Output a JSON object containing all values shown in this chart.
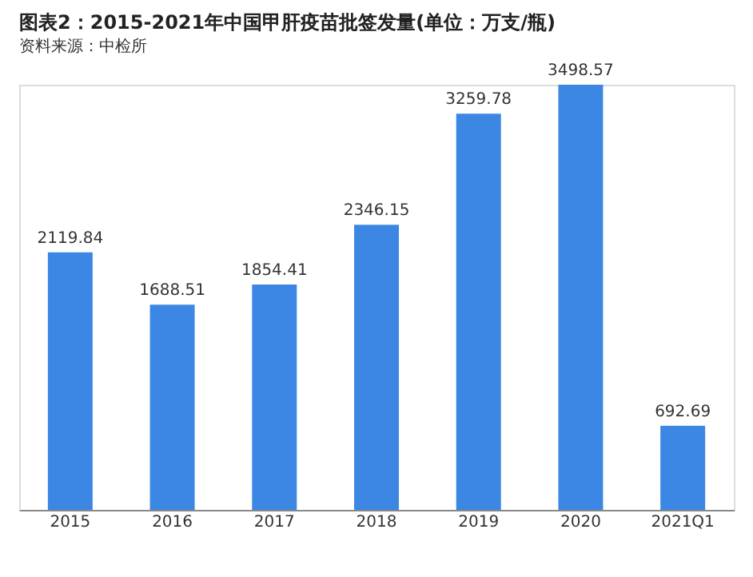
{
  "chart_data": {
    "type": "bar",
    "title": "图表2：2015-2021年中国甲肝疫苗批签发量(单位：万支/瓶)",
    "categories": [
      "2015",
      "2016",
      "2017",
      "2018",
      "2019",
      "2020",
      "2021Q1"
    ],
    "values": [
      2119.84,
      1688.51,
      1854.41,
      2346.15,
      3259.78,
      3498.57,
      692.69
    ],
    "color": "#3b87e3",
    "data_labels": true,
    "tick_labels": "x",
    "annotations": [
      "资料来源：中检所"
    ]
  }
}
